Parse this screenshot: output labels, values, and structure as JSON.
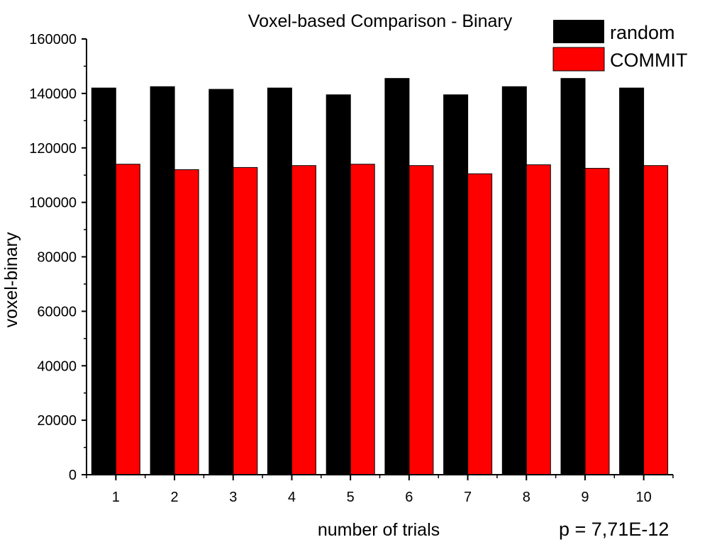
{
  "chart_data": {
    "type": "bar",
    "title": "Voxel-based Comparison - Binary",
    "xlabel": "number of trials",
    "ylabel": "voxel-binary",
    "categories": [
      "1",
      "2",
      "3",
      "4",
      "5",
      "6",
      "7",
      "8",
      "9",
      "10"
    ],
    "series": [
      {
        "name": "random",
        "color": "#000000",
        "values": [
          142000,
          142500,
          141500,
          142000,
          139500,
          145500,
          139500,
          142500,
          145500,
          142000
        ]
      },
      {
        "name": "COMMIT",
        "color": "#ff0000",
        "values": [
          114000,
          112000,
          112800,
          113500,
          114000,
          113500,
          110500,
          113800,
          112500,
          113500
        ]
      }
    ],
    "ylim": [
      0,
      160000
    ],
    "yticks": [
      "0",
      "20000",
      "40000",
      "60000",
      "80000",
      "100000",
      "120000",
      "140000",
      "160000"
    ],
    "grid": false,
    "legend_position": "top-right",
    "annotation": "p = 7,71E-12"
  }
}
